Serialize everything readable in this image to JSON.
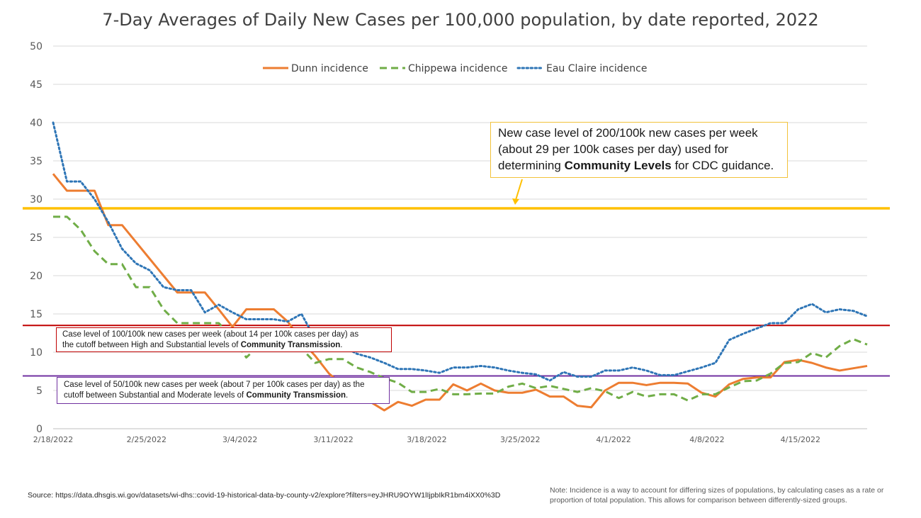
{
  "chart_data": {
    "type": "line",
    "title": "7-Day Averages of Daily New Cases per 100,000 population, by date reported, 2022",
    "ylim": [
      0,
      50
    ],
    "y_ticks": [
      0,
      5,
      10,
      15,
      20,
      25,
      30,
      35,
      40,
      45,
      50
    ],
    "x_tick_labels": [
      "2/18/2022",
      "2/25/2022",
      "3/4/2022",
      "3/11/2022",
      "3/18/2022",
      "3/25/2022",
      "4/1/2022",
      "4/8/2022",
      "4/15/2022"
    ],
    "x_start": "2/18/2022",
    "x_end": "4/20/2022",
    "grid": true,
    "legend_position": "top",
    "series": [
      {
        "name": "Dunn incidence",
        "color": "#ed7d31",
        "style": "solid",
        "values": [
          33.3,
          31.1,
          31.1,
          31.1,
          26.6,
          26.6,
          24.4,
          22.2,
          20.0,
          17.8,
          17.8,
          17.8,
          15.6,
          13.3,
          15.6,
          15.6,
          15.6,
          14.0,
          11.5,
          9.5,
          7.2,
          5.7,
          3.5,
          3.5,
          2.4,
          3.5,
          3.0,
          3.8,
          3.8,
          5.8,
          5.0,
          5.9,
          5.0,
          4.7,
          4.7,
          5.1,
          4.2,
          4.2,
          3.0,
          2.8,
          5.0,
          6.0,
          6.0,
          5.7,
          6.0,
          6.0,
          5.9,
          4.7,
          4.2,
          5.8,
          6.5,
          6.7,
          6.7,
          8.7,
          9.0,
          8.6,
          8.0,
          7.6,
          7.9,
          8.2
        ]
      },
      {
        "name": "Chippewa incidence",
        "color": "#70ad47",
        "style": "dashed",
        "values": [
          27.7,
          27.7,
          26.0,
          23.2,
          21.5,
          21.5,
          18.5,
          18.5,
          15.6,
          13.8,
          13.8,
          13.8,
          13.8,
          12.0,
          9.3,
          11.0,
          12.5,
          11.0,
          10.5,
          8.6,
          9.1,
          9.1,
          8.0,
          7.4,
          6.6,
          6.0,
          4.8,
          4.8,
          5.2,
          4.5,
          4.5,
          4.6,
          4.6,
          5.5,
          5.9,
          5.3,
          5.6,
          5.2,
          4.8,
          5.3,
          4.9,
          4.0,
          4.8,
          4.2,
          4.5,
          4.5,
          3.7,
          4.5,
          4.5,
          5.4,
          6.2,
          6.3,
          7.2,
          8.6,
          8.7,
          9.9,
          9.3,
          10.8,
          11.7,
          11.0
        ]
      },
      {
        "name": "Eau Claire incidence",
        "color": "#2e75b6",
        "style": "dotted",
        "values": [
          40.0,
          32.3,
          32.3,
          30.0,
          27.0,
          23.5,
          21.6,
          20.7,
          18.5,
          18.1,
          18.1,
          15.2,
          16.2,
          15.2,
          14.3,
          14.3,
          14.3,
          14.0,
          15.0,
          11.7,
          11.0,
          10.8,
          9.8,
          9.3,
          8.6,
          7.8,
          7.8,
          7.6,
          7.3,
          8.0,
          8.0,
          8.2,
          8.0,
          7.6,
          7.3,
          7.1,
          6.3,
          7.4,
          6.8,
          6.8,
          7.6,
          7.6,
          8.0,
          7.6,
          7.0,
          7.0,
          7.5,
          8.0,
          8.6,
          11.6,
          12.4,
          13.1,
          13.8,
          13.8,
          15.6,
          16.3,
          15.2,
          15.6,
          15.4,
          14.7
        ]
      }
    ],
    "thresholds": [
      {
        "value": 28.8,
        "color": "#ffc000"
      },
      {
        "value": 13.5,
        "color": "#c00000"
      },
      {
        "value": 6.9,
        "color": "#7030a0"
      }
    ]
  },
  "annotations": {
    "cdc": {
      "line1": "New case level of 200/100k new cases per week",
      "line2": "(about 29 per 100k cases per day) used for",
      "line3_prefix": "determining ",
      "line3_bold": "Community Levels",
      "line3_suffix": " for CDC guidance."
    },
    "high": {
      "line1": "Case level of 100/100k new cases per week (about 14 per 100k cases per day) as",
      "line2_prefix": "the cutoff between High and Substantial levels of ",
      "line2_bold": "Community Transmission",
      "line2_suffix": "."
    },
    "moderate": {
      "line1": "Case level of 50/100k new cases per week (about 7 per 100k cases per day) as the",
      "line2_prefix": "cutoff between Substantial and Moderate levels of ",
      "line2_bold": "Community Transmission",
      "line2_suffix": "."
    }
  },
  "footer": {
    "source": "Source: https://data.dhsgis.wi.gov/datasets/wi-dhs::covid-19-historical-data-by-county-v2/explore?filters=eyJHRU9OYW1lIjpbIkR1bm4iXX0%3D",
    "note": "Note:  Incidence is a way to account for differing sizes of populations, by calculating cases as a rate or proportion of total population.  This allows for comparison between differently-sized groups."
  }
}
